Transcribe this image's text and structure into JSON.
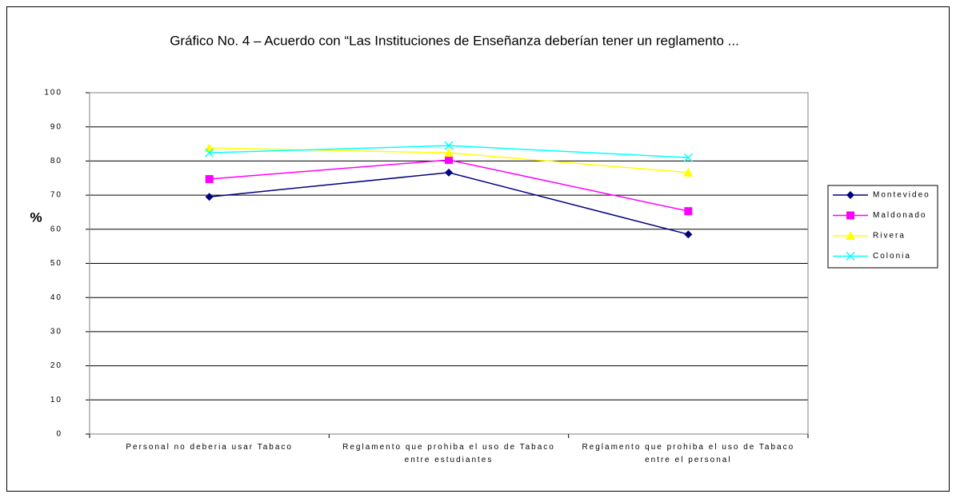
{
  "chart_data": {
    "type": "line",
    "title": "Gráfico No. 4 – Acuerdo con “Las Instituciones de Enseñanza deberían tener un reglamento ...",
    "y_label": "%",
    "categories": [
      "Personal no deberia usar Tabaco",
      "Reglamento que prohiba el uso de Tabaco entre estudiantes",
      "Reglamento que prohiba el uso de Tabaco entre el personal"
    ],
    "series": [
      {
        "name": "Montevideo",
        "color": "#000080",
        "marker": "diamond",
        "values": [
          69.5,
          76.6,
          58.5
        ]
      },
      {
        "name": "Maldonado",
        "color": "#ff00ff",
        "marker": "square",
        "values": [
          74.7,
          80.3,
          65.3
        ]
      },
      {
        "name": "Rivera",
        "color": "#ffff00",
        "marker": "triangle",
        "values": [
          83.8,
          82.4,
          76.6
        ]
      },
      {
        "name": "Colonia",
        "color": "#00ffff",
        "marker": "x",
        "values": [
          82.4,
          84.5,
          81.0
        ]
      }
    ],
    "ylim": [
      0,
      100
    ],
    "yticks": [
      0,
      10,
      20,
      30,
      40,
      50,
      60,
      70,
      80,
      90,
      100
    ],
    "grid": true,
    "legend": "right"
  }
}
